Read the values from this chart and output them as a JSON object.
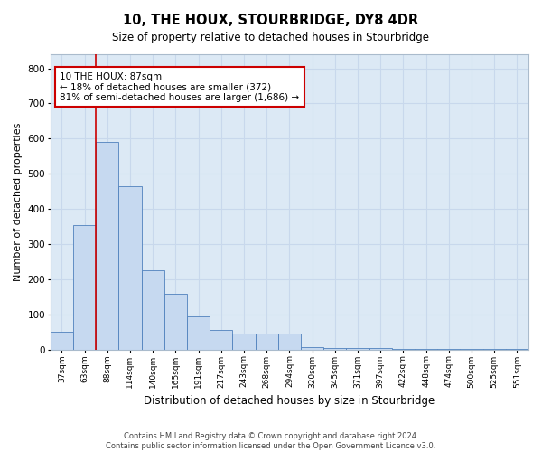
{
  "title": "10, THE HOUX, STOURBRIDGE, DY8 4DR",
  "subtitle": "Size of property relative to detached houses in Stourbridge",
  "xlabel": "Distribution of detached houses by size in Stourbridge",
  "ylabel": "Number of detached properties",
  "categories": [
    "37sqm",
    "63sqm",
    "88sqm",
    "114sqm",
    "140sqm",
    "165sqm",
    "191sqm",
    "217sqm",
    "243sqm",
    "268sqm",
    "294sqm",
    "320sqm",
    "345sqm",
    "371sqm",
    "397sqm",
    "422sqm",
    "448sqm",
    "474sqm",
    "500sqm",
    "525sqm",
    "551sqm"
  ],
  "values": [
    50,
    355,
    590,
    465,
    225,
    160,
    95,
    55,
    45,
    45,
    45,
    8,
    5,
    5,
    5,
    3,
    2,
    2,
    2,
    2,
    2
  ],
  "bar_color": "#c6d9f0",
  "bar_edge_color": "#4f81bd",
  "vline_color": "#cc0000",
  "annotation_box_edge_color": "#cc0000",
  "annotation_box_face_color": "#ffffff",
  "annotation_line1": "10 THE HOUX: 87sqm",
  "annotation_line2": "← 18% of detached houses are smaller (372)",
  "annotation_line3": "81% of semi-detached houses are larger (1,686) →",
  "ylim": [
    0,
    840
  ],
  "yticks": [
    0,
    100,
    200,
    300,
    400,
    500,
    600,
    700,
    800
  ],
  "grid_color": "#c8d8ec",
  "background_color": "#dce9f5",
  "footer_line1": "Contains HM Land Registry data © Crown copyright and database right 2024.",
  "footer_line2": "Contains public sector information licensed under the Open Government Licence v3.0."
}
